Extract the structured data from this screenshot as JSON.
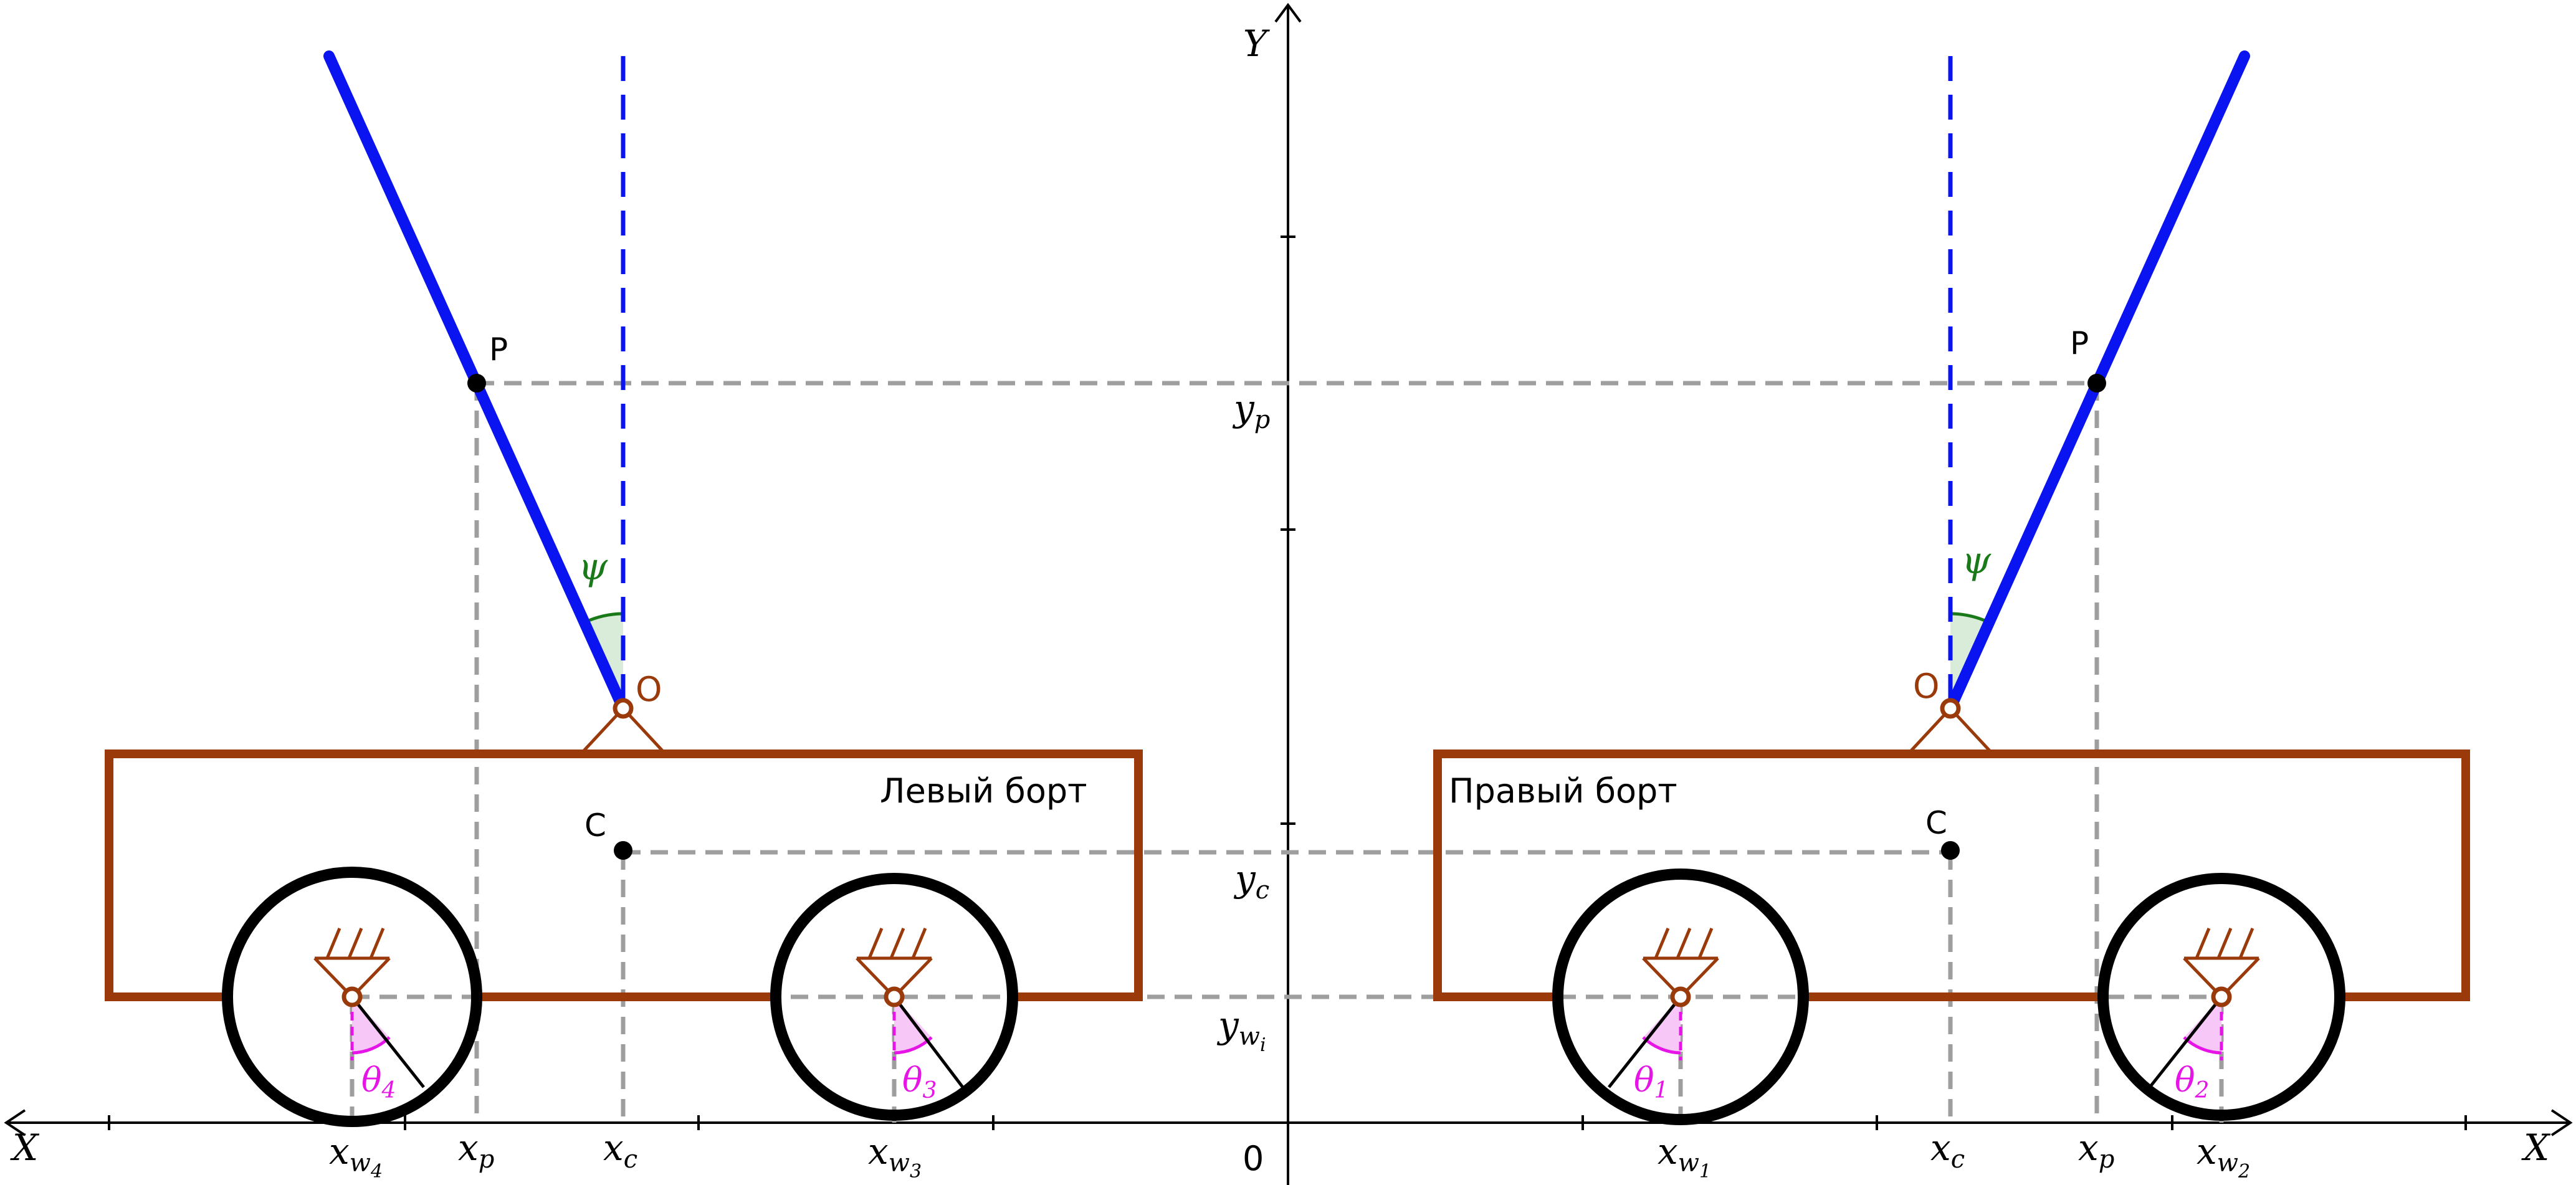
{
  "axes": {
    "x_left_label": "X",
    "x_right_label": "X",
    "y_label": "Y",
    "origin_label": "0"
  },
  "sides": {
    "left_label": "Левый борт",
    "right_label": "Правый борт"
  },
  "points": {
    "pendulum_tip": "P",
    "pivot": "O",
    "center_of_mass": "C"
  },
  "symbols": {
    "angle_psi": "ψ",
    "y_p": "y",
    "y_p_sub": "p",
    "y_c": "y",
    "y_c_sub": "c",
    "y_w": "y",
    "y_w_sub": "w",
    "y_w_subsub": "i",
    "x_p": "x",
    "x_p_sub": "p",
    "x_c": "x",
    "x_c_sub": "c",
    "x_w": "x",
    "x_w_sub": "w",
    "x_w1_index": "1",
    "x_w2_index": "2",
    "x_w3_index": "3",
    "x_w4_index": "4",
    "theta": "θ",
    "theta1_index": "1",
    "theta2_index": "2",
    "theta3_index": "3",
    "theta4_index": "4"
  },
  "colors": {
    "body": "#9a3a0a",
    "wheel": "#000000",
    "pendulum": "#0a14f0",
    "guide": "#9e9e9e",
    "angle_psi": "#1a7a1a",
    "angle_theta": "#e614e6"
  }
}
